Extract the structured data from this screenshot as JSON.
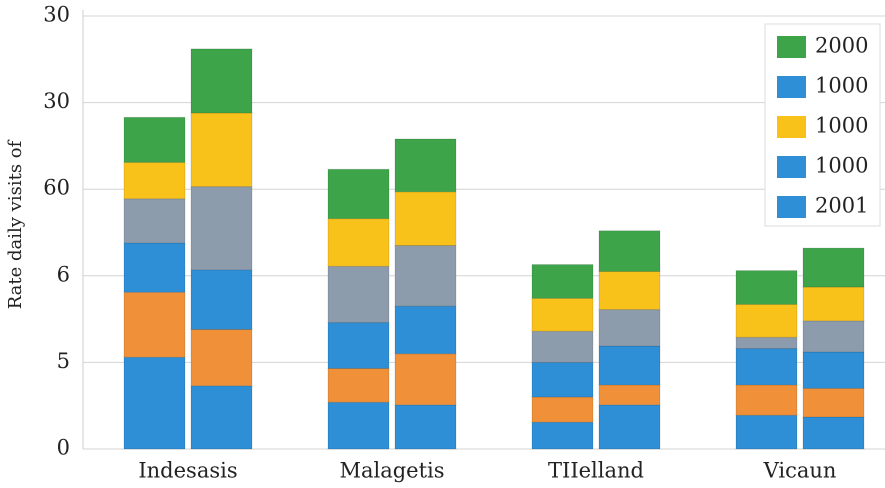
{
  "chart_data": {
    "type": "stacked_bar",
    "y_label": "Rate daily visits of",
    "categories": [
      "Indesasis",
      "Malagetis",
      "TIIelland",
      "Vicaun"
    ],
    "ylim": [
      0,
      5
    ],
    "yticks": [
      0,
      {
        "value": 1,
        "label": "5"
      },
      {
        "value": 2,
        "label": "6"
      },
      {
        "value": 3,
        "label": "60"
      },
      {
        "value": 4,
        "label": "30"
      },
      {
        "value": 5,
        "label": "30"
      }
    ],
    "grid": true,
    "series": [
      {
        "color": "#2e8fd6",
        "stack": 0,
        "values": [
          1.06,
          0.54,
          0.31,
          0.39
        ]
      },
      {
        "color": "#f0913a",
        "stack": 0,
        "values": [
          0.75,
          0.39,
          0.29,
          0.35
        ]
      },
      {
        "color": "#2e8fd6",
        "stack": 0,
        "values": [
          0.57,
          0.53,
          0.4,
          0.42
        ]
      },
      {
        "color": "#8c9cac",
        "stack": 0,
        "values": [
          0.51,
          0.65,
          0.36,
          0.13
        ]
      },
      {
        "color": "#f9c21b",
        "stack": 0,
        "values": [
          0.42,
          0.55,
          0.38,
          0.38
        ]
      },
      {
        "color": "#3ea44a",
        "stack": 0,
        "values": [
          0.52,
          0.57,
          0.39,
          0.39
        ]
      },
      {
        "color": "#2e8fd6",
        "stack": 1,
        "values": [
          0.73,
          0.51,
          0.51,
          0.37
        ]
      },
      {
        "color": "#f0913a",
        "stack": 1,
        "values": [
          0.65,
          0.59,
          0.23,
          0.33
        ]
      },
      {
        "color": "#2e8fd6",
        "stack": 1,
        "values": [
          0.69,
          0.55,
          0.45,
          0.42
        ]
      },
      {
        "color": "#8c9cac",
        "stack": 1,
        "values": [
          0.96,
          0.7,
          0.42,
          0.36
        ]
      },
      {
        "color": "#f9c21b",
        "stack": 1,
        "values": [
          0.85,
          0.62,
          0.44,
          0.39
        ]
      },
      {
        "color": "#3ea44a",
        "stack": 1,
        "values": [
          0.74,
          0.61,
          0.47,
          0.45
        ]
      }
    ],
    "legend": [
      {
        "name": "2000",
        "color": "#3ea44a"
      },
      {
        "name": "1000",
        "color": "#2e8fd6"
      },
      {
        "name": "1000",
        "color": "#f9c21b"
      },
      {
        "name": "1000",
        "color": "#2e8fd6"
      },
      {
        "name": "2001",
        "color": "#2e8fd6"
      }
    ]
  }
}
